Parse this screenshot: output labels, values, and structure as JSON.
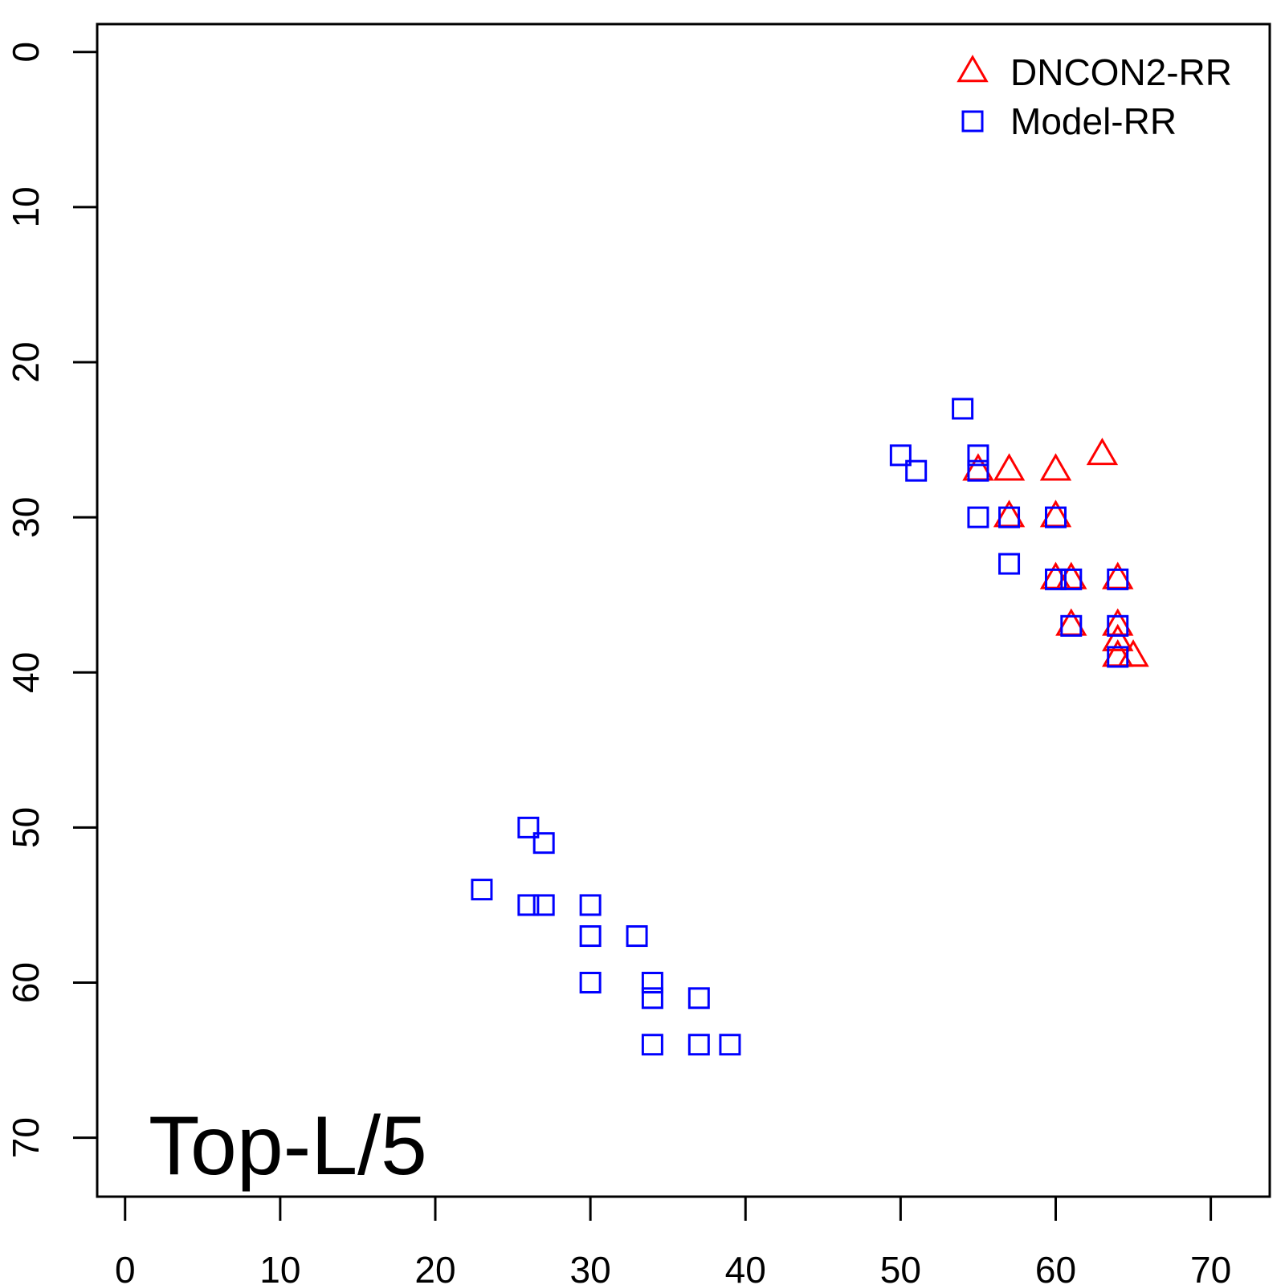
{
  "chart_data": {
    "type": "scatter",
    "title": "",
    "xlabel": "",
    "ylabel": "",
    "xlim": [
      -1.8,
      73.8
    ],
    "ylim": [
      -1.8,
      73.8
    ],
    "y_reversed": true,
    "x_ticks": [
      0,
      10,
      20,
      30,
      40,
      50,
      60,
      70
    ],
    "y_ticks": [
      0,
      10,
      20,
      30,
      40,
      50,
      60,
      70
    ],
    "grid": false,
    "legend_position": "top-right",
    "annotation": "Top-L/5",
    "series": [
      {
        "name": "DNCON2-RR",
        "marker": "triangle",
        "color": "#ff0000",
        "points": [
          [
            63,
            26
          ],
          [
            55,
            27
          ],
          [
            57,
            27
          ],
          [
            60,
            27
          ],
          [
            57,
            30
          ],
          [
            60,
            30
          ],
          [
            60,
            34
          ],
          [
            61,
            34
          ],
          [
            64,
            34
          ],
          [
            61,
            37
          ],
          [
            64,
            37
          ],
          [
            64,
            38
          ],
          [
            64,
            39
          ],
          [
            65,
            39
          ]
        ]
      },
      {
        "name": "Model-RR",
        "marker": "square",
        "color": "#0000ff",
        "points": [
          [
            54,
            23
          ],
          [
            50,
            26
          ],
          [
            55,
            26
          ],
          [
            51,
            27
          ],
          [
            55,
            27
          ],
          [
            55,
            30
          ],
          [
            57,
            30
          ],
          [
            60,
            30
          ],
          [
            57,
            33
          ],
          [
            60,
            34
          ],
          [
            61,
            34
          ],
          [
            64,
            34
          ],
          [
            61,
            37
          ],
          [
            64,
            37
          ],
          [
            64,
            39
          ],
          [
            26,
            50
          ],
          [
            27,
            51
          ],
          [
            23,
            54
          ],
          [
            26,
            55
          ],
          [
            27,
            55
          ],
          [
            30,
            55
          ],
          [
            30,
            57
          ],
          [
            33,
            57
          ],
          [
            30,
            60
          ],
          [
            34,
            60
          ],
          [
            34,
            61
          ],
          [
            37,
            61
          ],
          [
            34,
            64
          ],
          [
            37,
            64
          ],
          [
            39,
            64
          ]
        ]
      }
    ]
  }
}
